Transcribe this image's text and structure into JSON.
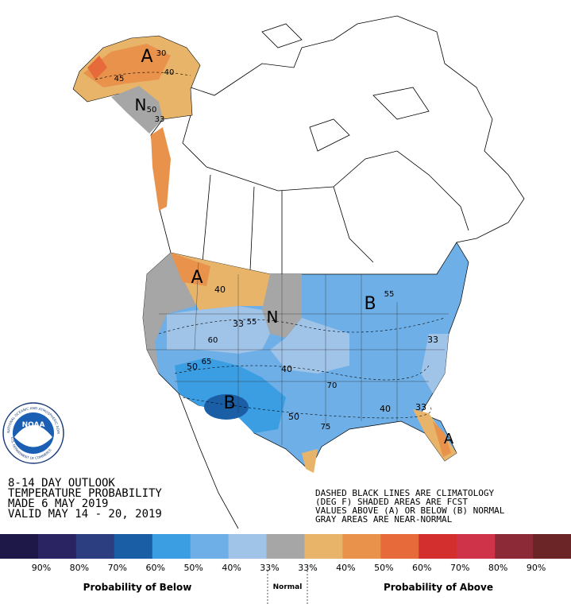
{
  "header": {
    "lines": [
      "8-14 DAY OUTLOOK",
      "TEMPERATURE PROBABILITY",
      "MADE  6 MAY 2019",
      "VALID  MAY 14 - 20, 2019"
    ]
  },
  "notes": [
    "DASHED BLACK LINES ARE CLIMATOLOGY",
    "(DEG F) SHADED AREAS ARE FCST",
    "VALUES ABOVE (A) OR BELOW (B) NORMAL",
    "GRAY AREAS ARE NEAR-NORMAL"
  ],
  "logo": {
    "name": "NOAA",
    "ring_top": "NATIONAL OCEANIC AND ATMOSPHERIC ADMINISTRATION",
    "ring_bottom": "U.S. DEPARTMENT OF COMMERCE"
  },
  "map": {
    "labels": [
      "A",
      "A",
      "A",
      "B",
      "B",
      "N",
      "N",
      "30",
      "40",
      "45",
      "50",
      "33",
      "40",
      "33",
      "55",
      "60",
      "50",
      "65",
      "40",
      "70",
      "50",
      "40",
      "33",
      "75",
      "33",
      "55"
    ]
  },
  "legend": {
    "colors": [
      "#1e1848",
      "#2a2462",
      "#2c3e7f",
      "#1a5ea6",
      "#3b9de2",
      "#6eafe7",
      "#a0c3e8",
      "#a6a6a6",
      "#e8b46a",
      "#e8924b",
      "#e66a3a",
      "#d42f2f",
      "#cf3349",
      "#8c2b37",
      "#6b2526"
    ],
    "labels": [
      "90%",
      "80%",
      "70%",
      "60%",
      "50%",
      "40%",
      "33%",
      "33%",
      "40%",
      "50%",
      "60%",
      "70%",
      "80%",
      "90%"
    ],
    "below": "Probability of Below",
    "normal": "Normal",
    "above": "Probability of Above"
  }
}
